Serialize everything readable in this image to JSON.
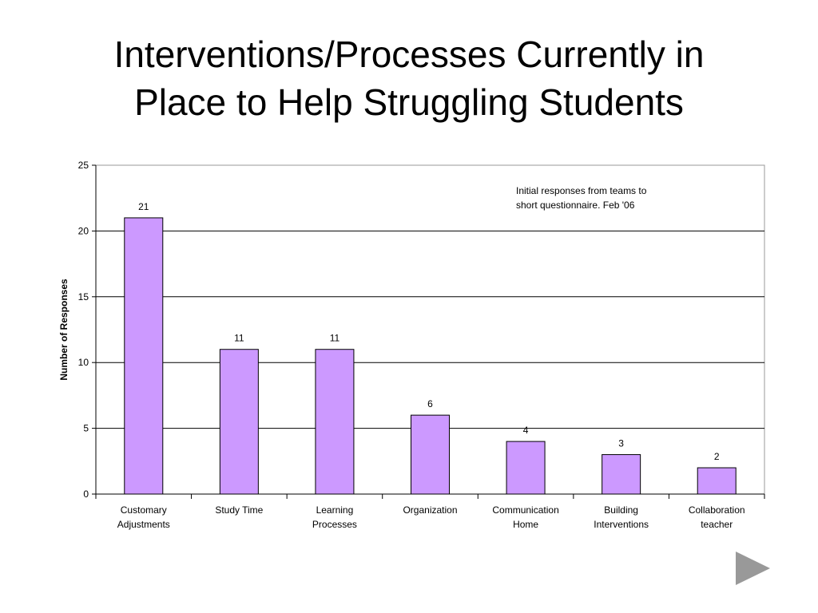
{
  "slide": {
    "title_line1": "Interventions/Processes Currently in",
    "title_line2": "Place to Help Struggling Students"
  },
  "chart_data": {
    "type": "bar",
    "title": "",
    "xlabel": "",
    "ylabel": "Number of Responses",
    "ylim": [
      0,
      25
    ],
    "yticks": [
      0,
      5,
      10,
      15,
      20,
      25
    ],
    "grid": true,
    "categories": [
      [
        "Customary",
        "Adjustments"
      ],
      [
        "Study Time"
      ],
      [
        "Learning",
        "Processes"
      ],
      [
        "Organization"
      ],
      [
        "Communication",
        "Home"
      ],
      [
        "Building",
        "Interventions"
      ],
      [
        "Collaboration",
        "teacher"
      ]
    ],
    "values": [
      21,
      11,
      11,
      6,
      4,
      3,
      2
    ],
    "data_labels": [
      "21",
      "11",
      "11",
      "6",
      "4",
      "3",
      "2"
    ],
    "bar_color": "#CC99FF",
    "annotation": [
      "Initial responses from teams to",
      "short questionnaire. Feb '06"
    ]
  },
  "navigation": {
    "next_icon": "play-triangle-icon",
    "next_color": "#999999"
  }
}
